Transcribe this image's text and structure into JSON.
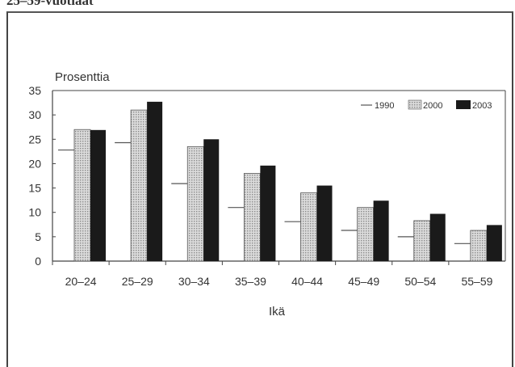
{
  "heading": "25–59-vuotiaat",
  "colors": {
    "s2000": "#c9c9c9",
    "s2003": "#1a1a1a",
    "s1990_line": "#555555"
  },
  "chart_data": {
    "type": "bar",
    "title": "",
    "ylabel": "Prosenttia",
    "xlabel": "Ikä",
    "ylim": [
      0,
      35
    ],
    "yticks": [
      0,
      5,
      10,
      15,
      20,
      25,
      30,
      35
    ],
    "categories": [
      "20–24",
      "25–29",
      "30–34",
      "35–39",
      "40–44",
      "45–49",
      "50–54",
      "55–59"
    ],
    "series": [
      {
        "name": "1990",
        "values": [
          22.8,
          24.3,
          15.9,
          11.0,
          8.1,
          6.3,
          5.0,
          3.6
        ],
        "style": "line"
      },
      {
        "name": "2000",
        "values": [
          27.0,
          31.0,
          23.5,
          18.0,
          14.0,
          11.0,
          8.3,
          6.3
        ],
        "style": "dotted"
      },
      {
        "name": "2003",
        "values": [
          26.9,
          32.7,
          25.0,
          19.6,
          15.5,
          12.4,
          9.7,
          7.4
        ],
        "style": "black"
      }
    ],
    "legend": "top-right",
    "grid": false
  }
}
